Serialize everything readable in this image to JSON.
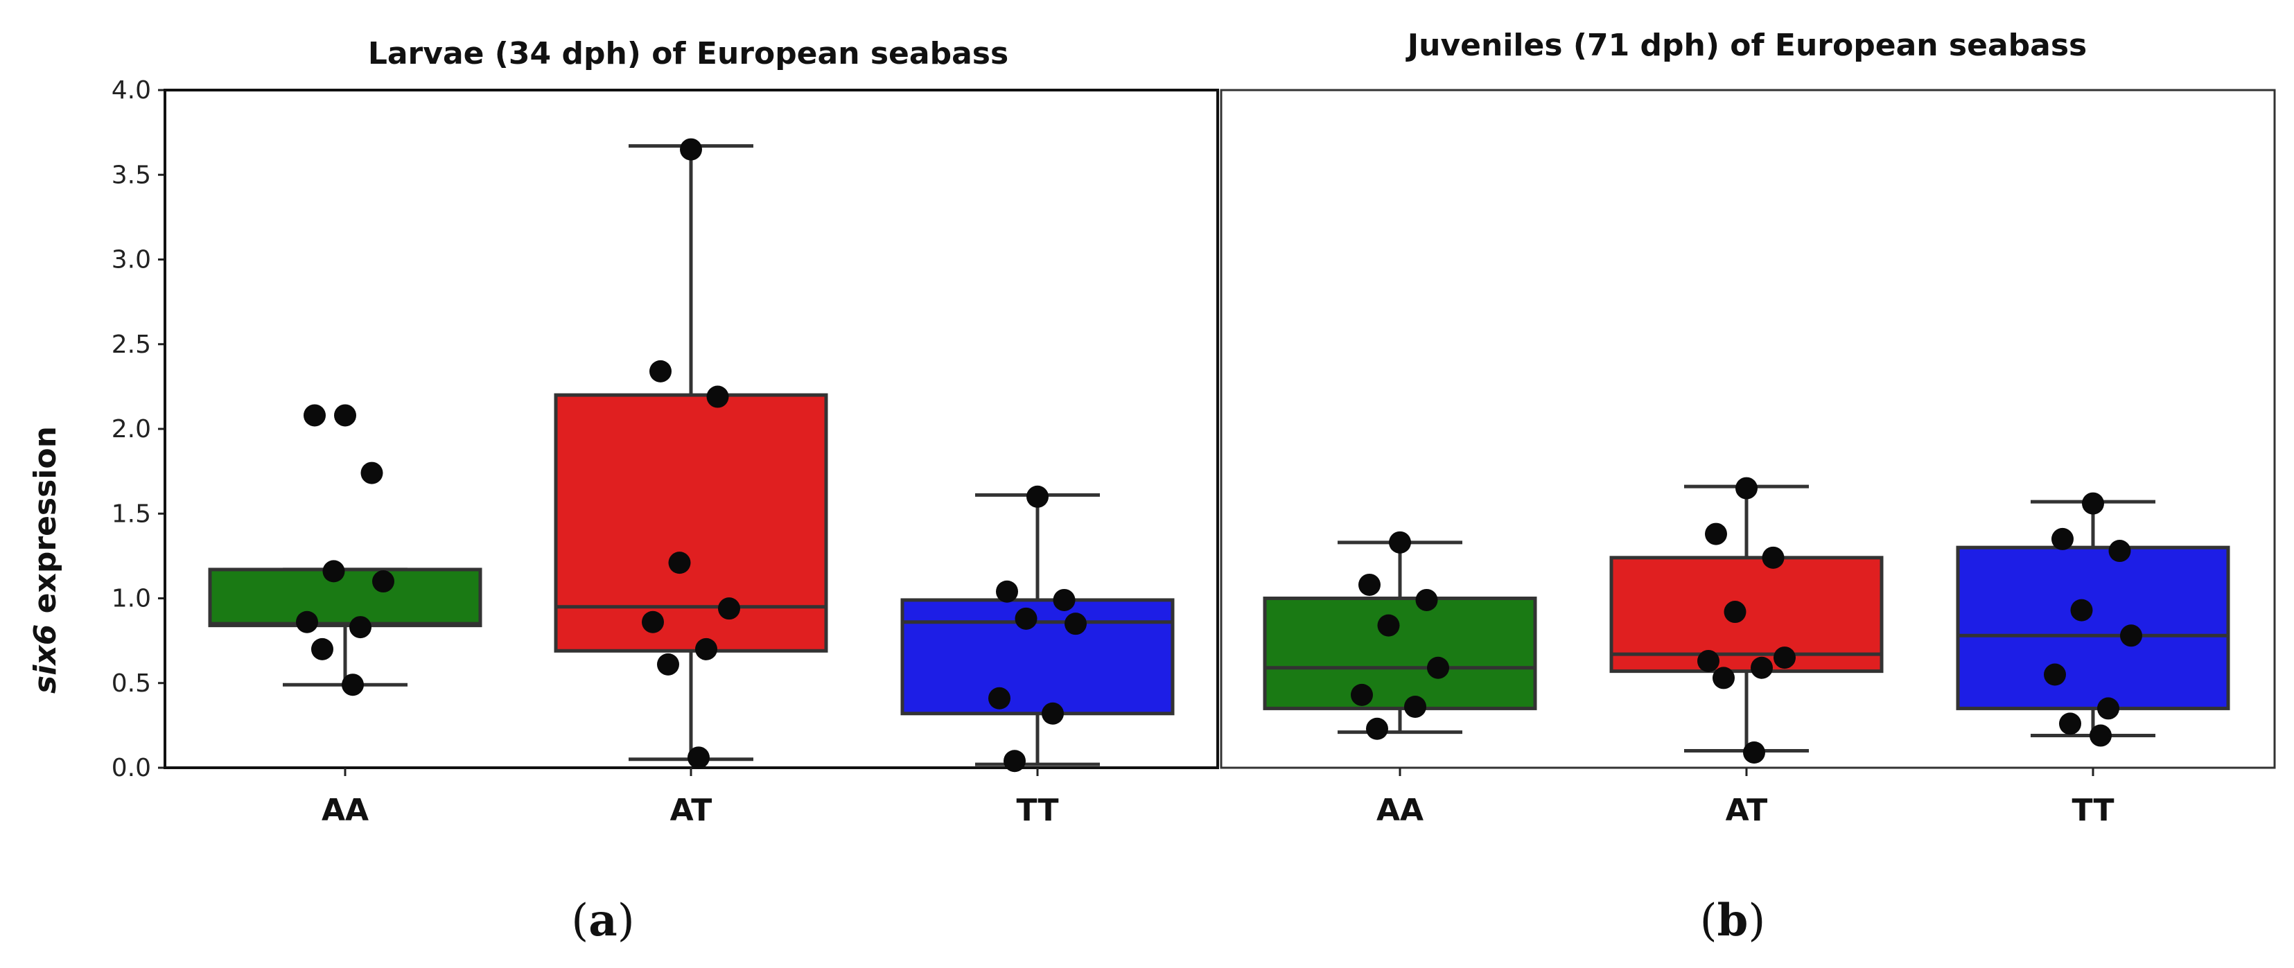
{
  "chart_data": {
    "type": "boxplot",
    "y_axis": {
      "label_italic": "six6",
      "label_rest": " expression",
      "ylim": [
        0,
        4.0
      ],
      "ticks": [
        "0.0",
        "0.5",
        "1.0",
        "1.5",
        "2.0",
        "2.5",
        "3.0",
        "3.5",
        "4.0"
      ]
    },
    "colors": {
      "AA": "#1a7a14",
      "AT": "#e01f20",
      "TT": "#1d1ee6"
    },
    "panels": [
      {
        "title": "Larvae (34 dph) of European seabass",
        "tag": "a",
        "groups": [
          {
            "category": "AA",
            "whisker_low": 0.49,
            "q1": 0.84,
            "median": 0.85,
            "q3": 1.17,
            "whisker_high": 1.17,
            "points": [
              2.08,
              2.08,
              1.74,
              1.16,
              1.1,
              0.86,
              0.83,
              0.7,
              0.49
            ]
          },
          {
            "category": "AT",
            "whisker_low": 0.05,
            "q1": 0.69,
            "median": 0.95,
            "q3": 2.2,
            "whisker_high": 3.67,
            "points": [
              3.65,
              2.34,
              2.19,
              1.21,
              0.94,
              0.86,
              0.7,
              0.61,
              0.06
            ]
          },
          {
            "category": "TT",
            "whisker_low": 0.02,
            "q1": 0.32,
            "median": 0.86,
            "q3": 0.99,
            "whisker_high": 1.61,
            "points": [
              1.6,
              1.04,
              0.99,
              0.88,
              0.85,
              0.41,
              0.32,
              0.04
            ]
          }
        ]
      },
      {
        "title": "Juveniles (71 dph) of European seabass",
        "tag": "b",
        "groups": [
          {
            "category": "AA",
            "whisker_low": 0.21,
            "q1": 0.35,
            "median": 0.59,
            "q3": 1.0,
            "whisker_high": 1.33,
            "points": [
              1.33,
              1.08,
              0.99,
              0.84,
              0.59,
              0.43,
              0.36,
              0.23
            ]
          },
          {
            "category": "AT",
            "whisker_low": 0.1,
            "q1": 0.57,
            "median": 0.67,
            "q3": 1.24,
            "whisker_high": 1.66,
            "points": [
              1.65,
              1.38,
              1.24,
              0.92,
              0.65,
              0.63,
              0.59,
              0.53,
              0.09
            ]
          },
          {
            "category": "TT",
            "whisker_low": 0.19,
            "q1": 0.35,
            "median": 0.78,
            "q3": 1.3,
            "whisker_high": 1.57,
            "points": [
              1.56,
              1.35,
              1.28,
              0.93,
              0.78,
              0.55,
              0.35,
              0.26,
              0.19
            ]
          }
        ]
      }
    ]
  }
}
